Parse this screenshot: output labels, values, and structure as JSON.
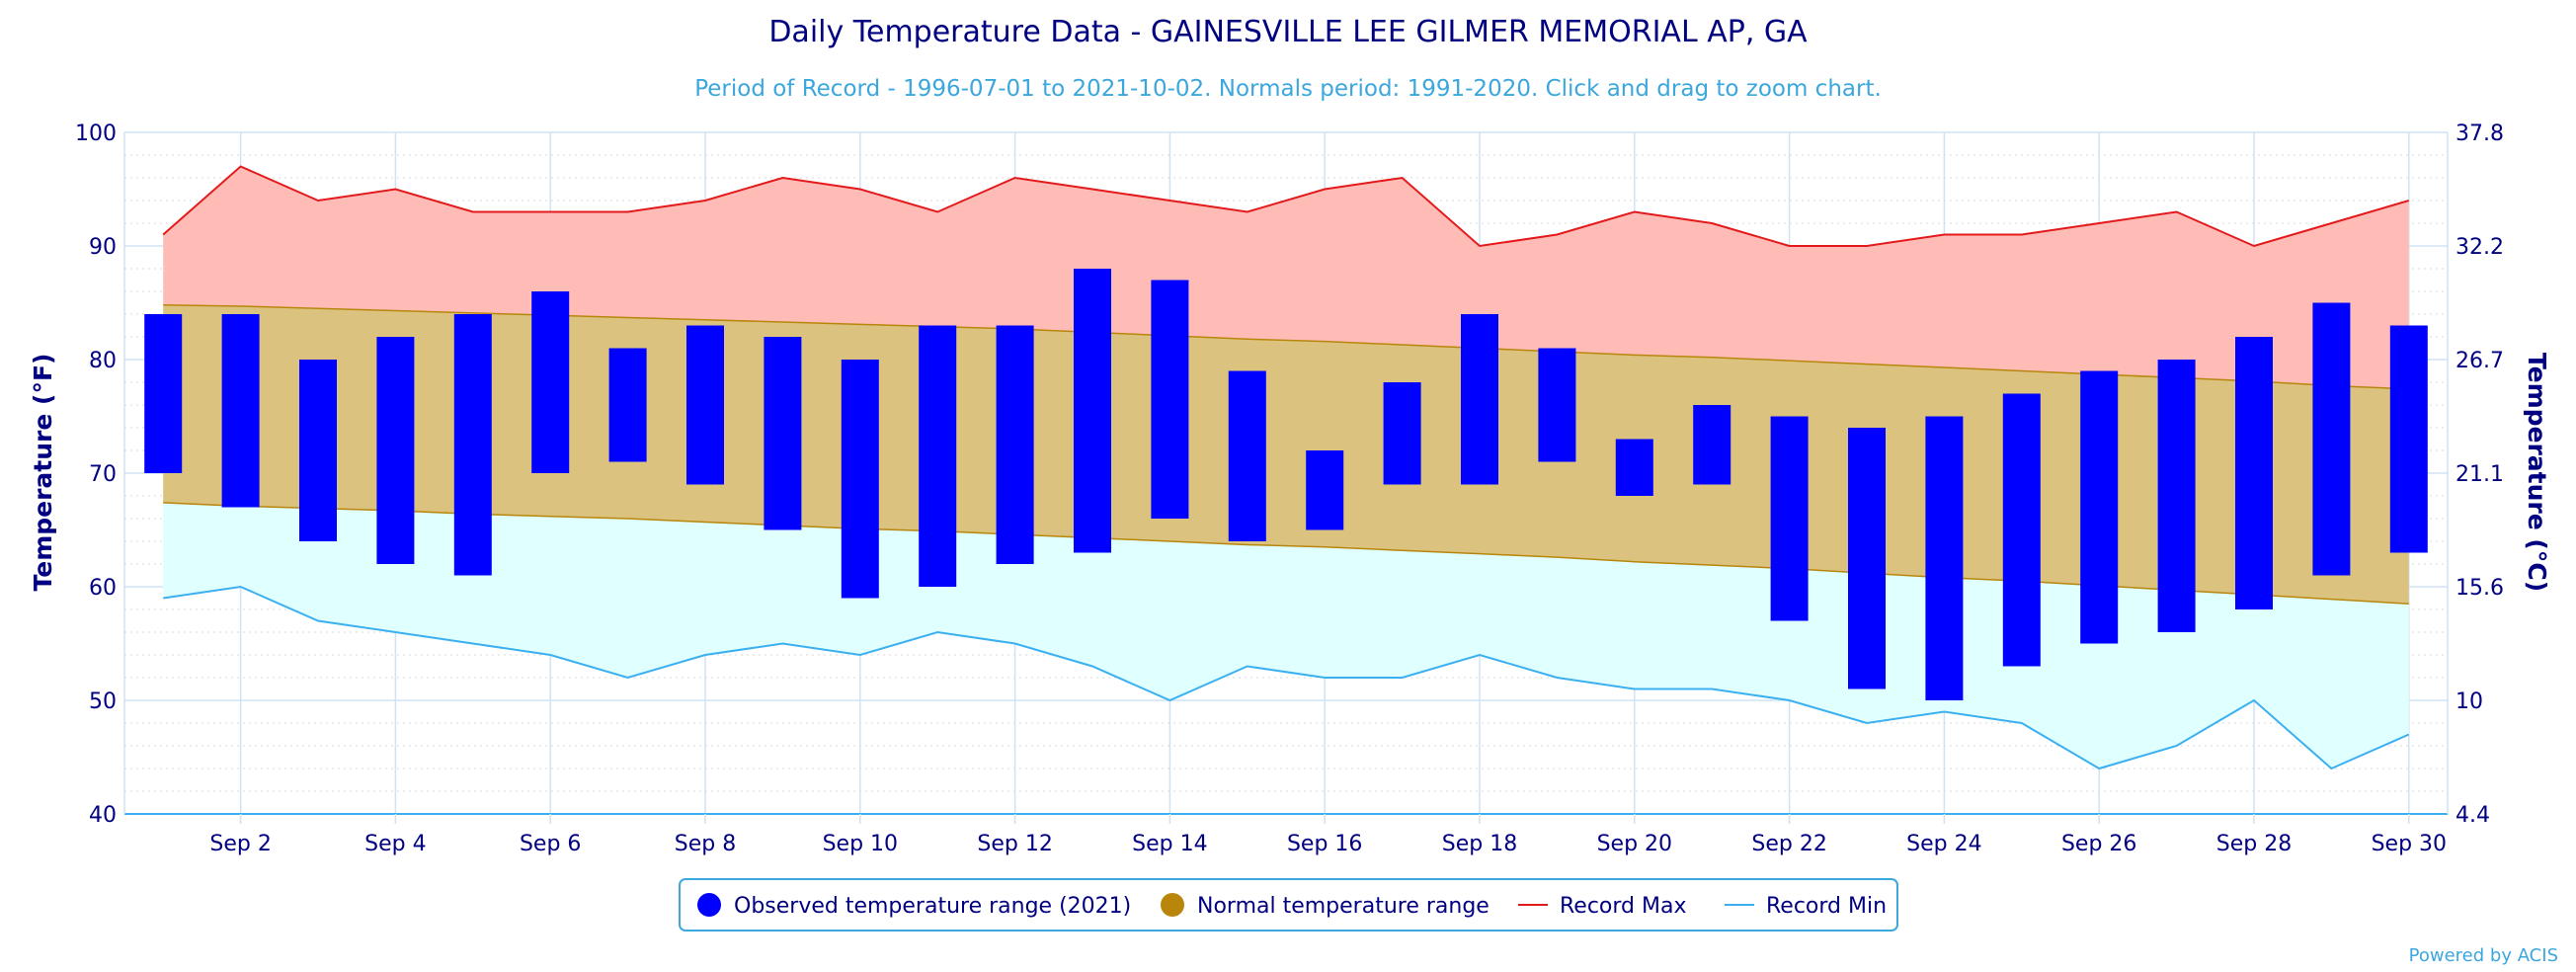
{
  "title": "Daily Temperature Data - GAINESVILLE LEE GILMER MEMORIAL AP, GA",
  "subtitle": "Period of Record - 1996-07-01 to 2021-10-02. Normals period: 1991-2020. Click and drag to zoom chart.",
  "credit": "Powered by ACIS",
  "legend": {
    "observed": "Observed temperature range (2021)",
    "normal": "Normal temperature range",
    "record_max": "Record Max",
    "record_min": "Record Min"
  },
  "colors": {
    "observed": "#0000ff",
    "normal_fill": "#dcc27f",
    "normal_marker": "#b8860b",
    "normal_line": "#b8860b",
    "record_max_fill": "#ffbcb7",
    "record_max_line": "#e31a1c",
    "record_min_fill": "#e0ffff",
    "record_min_line": "#3bb0f0",
    "grid": "#cfe3f3",
    "axis_text": "#000080"
  },
  "chart_data": {
    "type": "bar",
    "x": [
      1,
      2,
      3,
      4,
      5,
      6,
      7,
      8,
      9,
      10,
      11,
      12,
      13,
      14,
      15,
      16,
      17,
      18,
      19,
      20,
      21,
      22,
      23,
      24,
      25,
      26,
      27,
      28,
      29,
      30
    ],
    "x_tick_labels": [
      "Sep 2",
      "Sep 4",
      "Sep 6",
      "Sep 8",
      "Sep 10",
      "Sep 12",
      "Sep 14",
      "Sep 16",
      "Sep 18",
      "Sep 20",
      "Sep 22",
      "Sep 24",
      "Sep 26",
      "Sep 28",
      "Sep 30"
    ],
    "x_tick_days": [
      2,
      4,
      6,
      8,
      10,
      12,
      14,
      16,
      18,
      20,
      22,
      24,
      26,
      28,
      30
    ],
    "ylabel": "Temperature (°F)",
    "ylabel_right": "Temperature (°C)",
    "ylim": [
      40,
      100
    ],
    "y_ticks": [
      40,
      50,
      60,
      70,
      80,
      90,
      100
    ],
    "y_ticks_right": [
      "4.4",
      "10",
      "15.6",
      "21.1",
      "26.7",
      "32.2",
      "37.8"
    ],
    "grid": true,
    "legend_position": "bottom",
    "series": [
      {
        "name": "Observed temperature range (2021)",
        "type": "columnrange",
        "low": [
          70,
          67,
          64,
          62,
          61,
          70,
          71,
          69,
          65,
          59,
          60,
          62,
          63,
          66,
          64,
          65,
          69,
          69,
          71,
          68,
          69,
          57,
          51,
          50,
          53,
          55,
          56,
          58,
          61,
          63
        ],
        "high": [
          84,
          84,
          80,
          82,
          84,
          86,
          81,
          83,
          82,
          80,
          83,
          83,
          88,
          87,
          79,
          72,
          78,
          84,
          81,
          73,
          76,
          75,
          74,
          75,
          77,
          79,
          80,
          82,
          85,
          83
        ]
      },
      {
        "name": "Normal temperature range",
        "type": "arearange",
        "low": [
          67.4,
          67.1,
          66.9,
          66.7,
          66.4,
          66.2,
          66.0,
          65.7,
          65.4,
          65.1,
          64.9,
          64.6,
          64.3,
          64.0,
          63.7,
          63.5,
          63.2,
          62.9,
          62.6,
          62.2,
          61.9,
          61.6,
          61.2,
          60.8,
          60.5,
          60.1,
          59.7,
          59.3,
          58.9,
          58.5
        ],
        "high": [
          84.8,
          84.7,
          84.5,
          84.3,
          84.1,
          83.9,
          83.7,
          83.5,
          83.3,
          83.1,
          82.9,
          82.7,
          82.4,
          82.1,
          81.8,
          81.6,
          81.3,
          81.0,
          80.7,
          80.4,
          80.2,
          79.9,
          79.6,
          79.3,
          79.0,
          78.7,
          78.4,
          78.1,
          77.7,
          77.4
        ]
      },
      {
        "name": "Record Max",
        "type": "line",
        "values": [
          91,
          97,
          94,
          95,
          93,
          93,
          93,
          94,
          96,
          95,
          93,
          96,
          95,
          94,
          93,
          95,
          96,
          90,
          91,
          93,
          92,
          90,
          90,
          91,
          91,
          92,
          93,
          90,
          92,
          94
        ]
      },
      {
        "name": "Record Min",
        "type": "line",
        "values": [
          59,
          60,
          57,
          56,
          55,
          54,
          52,
          54,
          55,
          54,
          56,
          55,
          53,
          50,
          53,
          52,
          52,
          54,
          52,
          51,
          51,
          50,
          48,
          49,
          48,
          44,
          46,
          50,
          44,
          47
        ]
      }
    ]
  }
}
